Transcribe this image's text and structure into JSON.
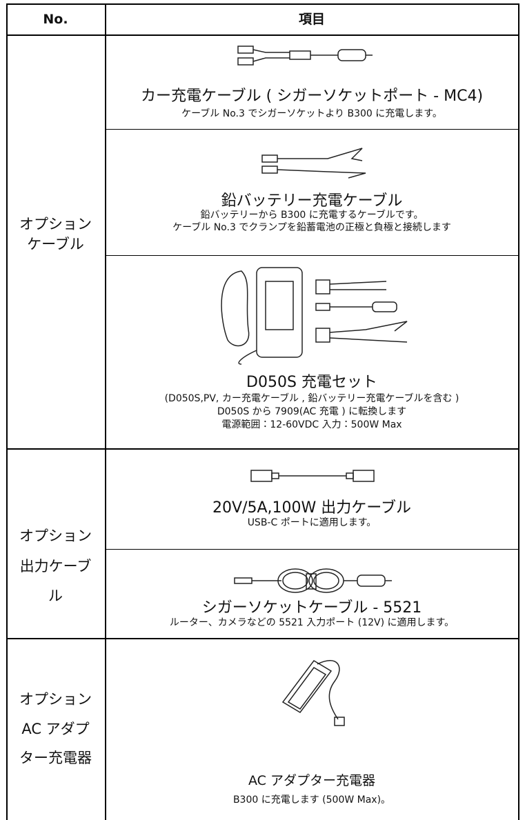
{
  "header": {
    "no": "No.",
    "item": "項目"
  },
  "groups": [
    {
      "label_lines": [
        "オプション",
        "ケーブル"
      ],
      "items": [
        {
          "title": "カー充電ケーブル ( シガーソケットポート - MC4)",
          "description": [
            "ケーブル No.3 でシガーソケットより B300 に充電します。"
          ]
        },
        {
          "title": "鉛バッテリー充電ケーブル",
          "description": [
            "鉛バッテリーから B300 に充電するケーブルです。",
            "ケーブル No.3 でクランプを鉛蓄電池の正極と負極と接続します"
          ]
        },
        {
          "title": "D050S 充電セット",
          "description": [
            "(D050S,PV, カー充電ケーブル , 鉛バッテリー充電ケーブルを含む )",
            "D050S から 7909(AC 充電 ) に転換します",
            "電源範囲：12-60VDC 入力：500W Max"
          ]
        }
      ]
    },
    {
      "label_lines": [
        "オプション",
        "出力ケーブ",
        "ル"
      ],
      "items": [
        {
          "title": "20V/5A,100W 出力ケーブル",
          "description": [
            "USB-C ポートに適用します。"
          ]
        },
        {
          "title": "シガーソケットケーブル - 5521",
          "description": [
            "ルーター、カメラなどの 5521 入力ポート (12V) に適用します。"
          ]
        }
      ]
    },
    {
      "label_lines": [
        "オプション",
        "AC アダプ",
        "ター充電器"
      ],
      "items": [
        {
          "title": "AC アダプター充電器",
          "description": [
            "B300 に充電します (500W Max)。"
          ]
        }
      ]
    }
  ]
}
